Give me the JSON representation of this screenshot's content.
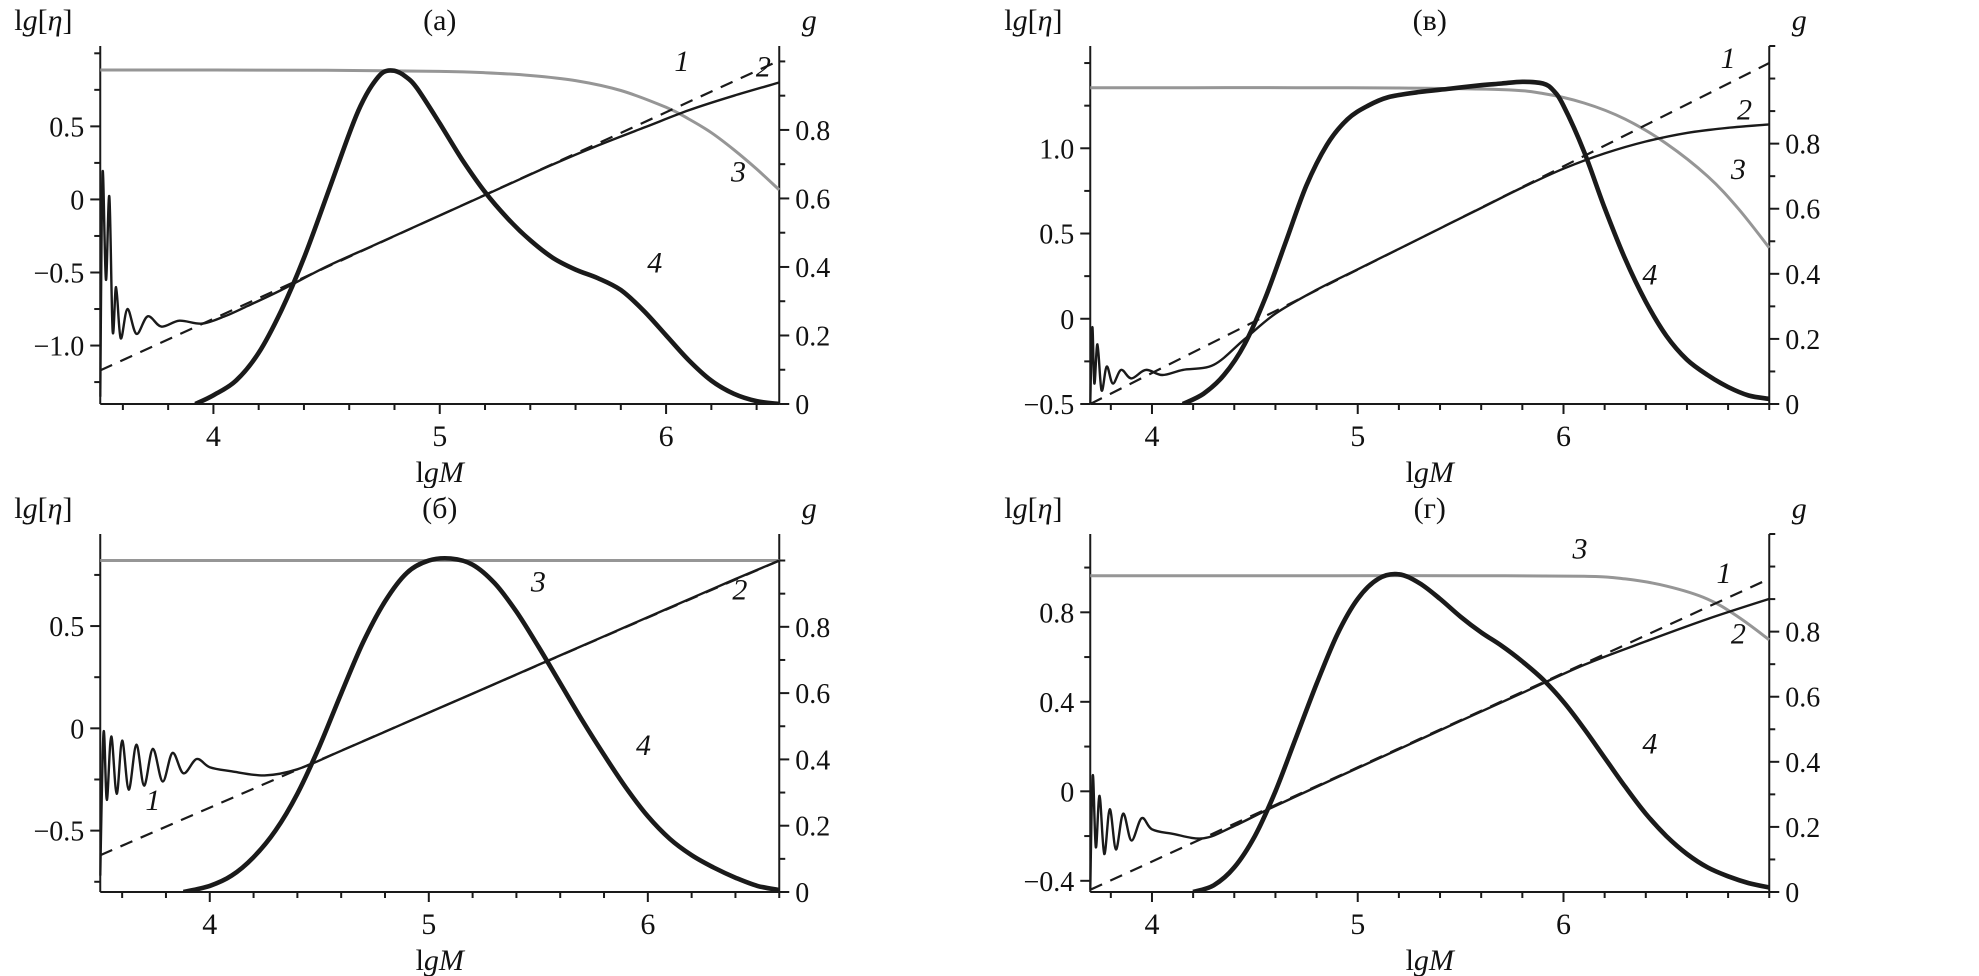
{
  "palette": {
    "black": "#1a1a1a",
    "gray": "#969696",
    "text": "#111111"
  },
  "chart_data": [
    {
      "id": "a",
      "type": "line",
      "title": "(а)",
      "xlabel": "lgM",
      "ylabel_left": "lg[η]",
      "ylabel_right": "g",
      "xlim": [
        3.5,
        6.5
      ],
      "ylim_left": [
        -1.4,
        1.05
      ],
      "ylim_right": [
        0,
        1.045
      ],
      "grid": false,
      "xticks": [
        {
          "v": 4,
          "t": "4"
        },
        {
          "v": 5,
          "t": "5"
        },
        {
          "v": 6,
          "t": "6"
        }
      ],
      "yticks_left": [
        {
          "v": -1.0,
          "t": "−1.0"
        },
        {
          "v": -0.5,
          "t": "−0.5"
        },
        {
          "v": 0,
          "t": "0"
        },
        {
          "v": 0.5,
          "t": "0.5"
        }
      ],
      "yticks_right": [
        {
          "v": 0,
          "t": "0"
        },
        {
          "v": 0.2,
          "t": "0.2"
        },
        {
          "v": 0.4,
          "t": "0.4"
        },
        {
          "v": 0.6,
          "t": "0.6"
        },
        {
          "v": 0.8,
          "t": "0.8"
        }
      ],
      "xminor": 0.2,
      "yminor_left": 0.25,
      "yminor_right": 0.1,
      "series": [
        {
          "name": "3",
          "style": "gray",
          "axis": "right",
          "x": [
            3.5,
            4.0,
            4.5,
            5.0,
            5.2,
            5.4,
            5.6,
            5.8,
            6.0,
            6.1,
            6.2,
            6.3,
            6.4,
            6.5
          ],
          "y": [
            0.975,
            0.975,
            0.974,
            0.971,
            0.967,
            0.959,
            0.944,
            0.915,
            0.866,
            0.832,
            0.792,
            0.742,
            0.686,
            0.625
          ]
        },
        {
          "name": "1",
          "style": "dashed",
          "axis": "left",
          "x": [
            3.5,
            6.5
          ],
          "y": [
            -1.17,
            0.95
          ]
        },
        {
          "name": "2",
          "style": "solid",
          "axis": "left",
          "x": [
            3.5,
            3.51,
            3.525,
            3.54,
            3.555,
            3.57,
            3.59,
            3.62,
            3.66,
            3.71,
            3.77,
            3.85,
            3.95,
            4.05,
            4.15,
            4.3,
            4.5,
            4.7,
            4.9,
            5.1,
            5.3,
            5.5,
            5.7,
            5.9,
            6.1,
            6.3,
            6.5
          ],
          "y": [
            -1.35,
            0.18,
            -0.55,
            0.02,
            -0.9,
            -0.6,
            -0.95,
            -0.75,
            -0.92,
            -0.8,
            -0.87,
            -0.83,
            -0.85,
            -0.8,
            -0.73,
            -0.62,
            -0.46,
            -0.32,
            -0.18,
            -0.04,
            0.1,
            0.24,
            0.37,
            0.49,
            0.61,
            0.71,
            0.8
          ]
        },
        {
          "name": "4",
          "style": "thick",
          "axis": "left",
          "x": [
            3.92,
            4.0,
            4.1,
            4.2,
            4.3,
            4.4,
            4.5,
            4.6,
            4.65,
            4.7,
            4.75,
            4.8,
            4.85,
            4.9,
            5.0,
            5.1,
            5.2,
            5.3,
            5.4,
            5.5,
            5.6,
            5.7,
            5.8,
            5.9,
            6.0,
            6.1,
            6.2,
            6.3,
            6.4,
            6.5
          ],
          "y": [
            -1.4,
            -1.34,
            -1.24,
            -1.05,
            -0.76,
            -0.4,
            0.02,
            0.45,
            0.64,
            0.78,
            0.87,
            0.88,
            0.84,
            0.76,
            0.52,
            0.27,
            0.05,
            -0.13,
            -0.28,
            -0.4,
            -0.48,
            -0.54,
            -0.62,
            -0.76,
            -0.93,
            -1.1,
            -1.24,
            -1.33,
            -1.38,
            -1.4
          ]
        }
      ],
      "labels": [
        {
          "text": "1",
          "axis": "left",
          "x": 6.07,
          "y": 0.88
        },
        {
          "text": "2",
          "axis": "left",
          "x": 6.43,
          "y": 0.84
        },
        {
          "text": "3",
          "axis": "right",
          "x": 6.32,
          "y": 0.65
        },
        {
          "text": "4",
          "axis": "left",
          "x": 5.95,
          "y": -0.5
        }
      ]
    },
    {
      "id": "v",
      "type": "line",
      "title": "(в)",
      "xlabel": "lgM",
      "ylabel_left": "lg[η]",
      "ylabel_right": "g",
      "xlim": [
        3.7,
        7.0
      ],
      "ylim_left": [
        -0.5,
        1.6
      ],
      "ylim_right": [
        0,
        1.1
      ],
      "grid": false,
      "xticks": [
        {
          "v": 4,
          "t": "4"
        },
        {
          "v": 5,
          "t": "5"
        },
        {
          "v": 6,
          "t": "6"
        }
      ],
      "yticks_left": [
        {
          "v": -0.5,
          "t": "−0.5"
        },
        {
          "v": 0,
          "t": "0"
        },
        {
          "v": 0.5,
          "t": "0.5"
        },
        {
          "v": 1.0,
          "t": "1.0"
        }
      ],
      "yticks_right": [
        {
          "v": 0,
          "t": "0"
        },
        {
          "v": 0.2,
          "t": "0.2"
        },
        {
          "v": 0.4,
          "t": "0.4"
        },
        {
          "v": 0.6,
          "t": "0.6"
        },
        {
          "v": 0.8,
          "t": "0.8"
        }
      ],
      "xminor": 0.2,
      "yminor_left": 0.25,
      "yminor_right": 0.1,
      "series": [
        {
          "name": "3",
          "style": "gray",
          "axis": "right",
          "x": [
            3.7,
            4.2,
            4.7,
            5.2,
            5.7,
            5.9,
            6.1,
            6.3,
            6.5,
            6.7,
            6.85,
            7.0
          ],
          "y": [
            0.972,
            0.972,
            0.972,
            0.971,
            0.966,
            0.954,
            0.925,
            0.875,
            0.8,
            0.7,
            0.6,
            0.48
          ]
        },
        {
          "name": "1",
          "style": "dashed",
          "axis": "left",
          "x": [
            3.7,
            7.0
          ],
          "y": [
            -0.5,
            1.5
          ]
        },
        {
          "name": "2",
          "style": "solid",
          "axis": "left",
          "x": [
            3.7,
            3.71,
            3.72,
            3.735,
            3.755,
            3.78,
            3.81,
            3.85,
            3.9,
            3.97,
            4.05,
            4.15,
            4.3,
            4.45,
            4.6,
            4.8,
            5.0,
            5.2,
            5.4,
            5.6,
            5.8,
            6.0,
            6.2,
            6.4,
            6.6,
            6.8,
            7.0
          ],
          "y": [
            -0.5,
            -0.05,
            -0.38,
            -0.15,
            -0.42,
            -0.28,
            -0.38,
            -0.3,
            -0.35,
            -0.3,
            -0.33,
            -0.3,
            -0.27,
            -0.12,
            0.03,
            0.17,
            0.29,
            0.41,
            0.53,
            0.65,
            0.77,
            0.88,
            0.97,
            1.04,
            1.09,
            1.12,
            1.14
          ]
        },
        {
          "name": "4",
          "style": "thick",
          "axis": "left",
          "x": [
            4.15,
            4.25,
            4.35,
            4.45,
            4.55,
            4.65,
            4.75,
            4.85,
            4.95,
            5.05,
            5.15,
            5.3,
            5.45,
            5.6,
            5.7,
            5.8,
            5.9,
            5.95,
            6.0,
            6.1,
            6.2,
            6.3,
            6.4,
            6.5,
            6.6,
            6.7,
            6.8,
            6.9,
            7.0
          ],
          "y": [
            -0.5,
            -0.44,
            -0.33,
            -0.15,
            0.12,
            0.45,
            0.78,
            1.02,
            1.17,
            1.25,
            1.3,
            1.33,
            1.35,
            1.37,
            1.38,
            1.39,
            1.38,
            1.34,
            1.25,
            0.98,
            0.65,
            0.35,
            0.1,
            -0.1,
            -0.24,
            -0.33,
            -0.4,
            -0.45,
            -0.47
          ]
        }
      ],
      "labels": [
        {
          "text": "1",
          "axis": "left",
          "x": 6.8,
          "y": 1.47
        },
        {
          "text": "2",
          "axis": "left",
          "x": 6.88,
          "y": 1.17
        },
        {
          "text": "3",
          "axis": "left",
          "x": 6.85,
          "y": 0.82
        },
        {
          "text": "4",
          "axis": "left",
          "x": 6.42,
          "y": 0.2
        }
      ]
    },
    {
      "id": "b",
      "type": "line",
      "title": "(б)",
      "xlabel": "lgM",
      "ylabel_left": "lg[η]",
      "ylabel_right": "g",
      "xlim": [
        3.5,
        6.6
      ],
      "ylim_left": [
        -0.8,
        0.95
      ],
      "ylim_right": [
        0,
        1.08
      ],
      "grid": false,
      "xticks": [
        {
          "v": 4,
          "t": "4"
        },
        {
          "v": 5,
          "t": "5"
        },
        {
          "v": 6,
          "t": "6"
        }
      ],
      "yticks_left": [
        {
          "v": -0.5,
          "t": "−0.5"
        },
        {
          "v": 0,
          "t": "0"
        },
        {
          "v": 0.5,
          "t": "0.5"
        }
      ],
      "yticks_right": [
        {
          "v": 0,
          "t": "0"
        },
        {
          "v": 0.2,
          "t": "0.2"
        },
        {
          "v": 0.4,
          "t": "0.4"
        },
        {
          "v": 0.6,
          "t": "0.6"
        },
        {
          "v": 0.8,
          "t": "0.8"
        }
      ],
      "xminor": 0.2,
      "yminor_left": 0.25,
      "yminor_right": 0.1,
      "series": [
        {
          "name": "3",
          "style": "gray",
          "axis": "right",
          "x": [
            3.5,
            6.6
          ],
          "y": [
            1.0,
            1.0
          ]
        },
        {
          "name": "1",
          "style": "dashed",
          "axis": "left",
          "x": [
            3.5,
            6.6
          ],
          "y": [
            -0.62,
            0.82
          ]
        },
        {
          "name": "2",
          "style": "solid",
          "axis": "left",
          "x": [
            3.5,
            3.515,
            3.53,
            3.55,
            3.575,
            3.6,
            3.63,
            3.665,
            3.7,
            3.74,
            3.785,
            3.83,
            3.88,
            3.94,
            4.0,
            4.1,
            4.25,
            4.4,
            4.6,
            4.9,
            5.2,
            5.5,
            5.8,
            6.1,
            6.4,
            6.6
          ],
          "y": [
            -0.72,
            -0.02,
            -0.35,
            -0.04,
            -0.32,
            -0.06,
            -0.3,
            -0.08,
            -0.28,
            -0.1,
            -0.26,
            -0.12,
            -0.22,
            -0.15,
            -0.19,
            -0.21,
            -0.23,
            -0.2,
            -0.11,
            0.03,
            0.17,
            0.31,
            0.45,
            0.59,
            0.73,
            0.82
          ]
        },
        {
          "name": "4",
          "style": "thick",
          "axis": "left",
          "x": [
            3.88,
            4.0,
            4.1,
            4.2,
            4.3,
            4.4,
            4.5,
            4.6,
            4.7,
            4.8,
            4.9,
            5.0,
            5.1,
            5.2,
            5.3,
            5.4,
            5.5,
            5.6,
            5.7,
            5.8,
            5.9,
            6.0,
            6.1,
            6.2,
            6.3,
            6.4,
            6.5,
            6.6
          ],
          "y": [
            -0.8,
            -0.77,
            -0.72,
            -0.63,
            -0.5,
            -0.32,
            -0.09,
            0.17,
            0.42,
            0.62,
            0.76,
            0.82,
            0.83,
            0.8,
            0.71,
            0.57,
            0.4,
            0.22,
            0.04,
            -0.13,
            -0.29,
            -0.43,
            -0.54,
            -0.62,
            -0.68,
            -0.73,
            -0.77,
            -0.79
          ]
        }
      ],
      "labels": [
        {
          "text": "1",
          "axis": "left",
          "x": 3.74,
          "y": -0.4
        },
        {
          "text": "2",
          "axis": "left",
          "x": 6.42,
          "y": 0.63
        },
        {
          "text": "3",
          "axis": "left",
          "x": 5.5,
          "y": 0.67
        },
        {
          "text": "4",
          "axis": "left",
          "x": 5.98,
          "y": -0.13
        }
      ]
    },
    {
      "id": "g",
      "type": "line",
      "title": "(г)",
      "xlabel": "lgM",
      "ylabel_left": "lg[η]",
      "ylabel_right": "g",
      "xlim": [
        3.7,
        7.0
      ],
      "ylim_left": [
        -0.45,
        1.15
      ],
      "ylim_right": [
        0,
        1.1
      ],
      "grid": false,
      "xticks": [
        {
          "v": 4,
          "t": "4"
        },
        {
          "v": 5,
          "t": "5"
        },
        {
          "v": 6,
          "t": "6"
        }
      ],
      "yticks_left": [
        {
          "v": -0.4,
          "t": "−0.4"
        },
        {
          "v": 0,
          "t": "0"
        },
        {
          "v": 0.4,
          "t": "0.4"
        },
        {
          "v": 0.8,
          "t": "0.8"
        }
      ],
      "yticks_right": [
        {
          "v": 0,
          "t": "0"
        },
        {
          "v": 0.2,
          "t": "0.2"
        },
        {
          "v": 0.4,
          "t": "0.4"
        },
        {
          "v": 0.6,
          "t": "0.6"
        },
        {
          "v": 0.8,
          "t": "0.8"
        }
      ],
      "xminor": 0.2,
      "yminor_left": 0.2,
      "yminor_right": 0.1,
      "series": [
        {
          "name": "3",
          "style": "gray",
          "axis": "right",
          "x": [
            3.7,
            4.3,
            4.9,
            5.5,
            6.1,
            6.3,
            6.5,
            6.7,
            6.85,
            7.0
          ],
          "y": [
            0.972,
            0.972,
            0.972,
            0.972,
            0.97,
            0.962,
            0.94,
            0.9,
            0.845,
            0.775
          ]
        },
        {
          "name": "1",
          "style": "dashed",
          "axis": "left",
          "x": [
            3.7,
            7.0
          ],
          "y": [
            -0.44,
            0.95
          ]
        },
        {
          "name": "2",
          "style": "solid",
          "axis": "left",
          "x": [
            3.7,
            3.712,
            3.727,
            3.745,
            3.768,
            3.795,
            3.825,
            3.86,
            3.9,
            3.95,
            4.0,
            4.1,
            4.25,
            4.4,
            4.6,
            4.9,
            5.2,
            5.5,
            5.8,
            6.1,
            6.4,
            6.7,
            7.0
          ],
          "y": [
            -0.44,
            0.07,
            -0.25,
            -0.02,
            -0.28,
            -0.08,
            -0.26,
            -0.1,
            -0.22,
            -0.12,
            -0.17,
            -0.19,
            -0.21,
            -0.155,
            -0.065,
            0.062,
            0.188,
            0.315,
            0.44,
            0.565,
            0.67,
            0.77,
            0.86
          ]
        },
        {
          "name": "4",
          "style": "thick",
          "axis": "left",
          "x": [
            4.2,
            4.3,
            4.4,
            4.5,
            4.6,
            4.7,
            4.8,
            4.9,
            5.0,
            5.1,
            5.2,
            5.3,
            5.4,
            5.5,
            5.6,
            5.7,
            5.8,
            5.9,
            6.0,
            6.1,
            6.2,
            6.3,
            6.4,
            6.5,
            6.6,
            6.7,
            6.8,
            6.9,
            7.0
          ],
          "y": [
            -0.45,
            -0.42,
            -0.34,
            -0.2,
            0.0,
            0.24,
            0.48,
            0.7,
            0.86,
            0.95,
            0.97,
            0.93,
            0.86,
            0.78,
            0.71,
            0.65,
            0.58,
            0.5,
            0.4,
            0.28,
            0.15,
            0.02,
            -0.1,
            -0.2,
            -0.28,
            -0.34,
            -0.38,
            -0.41,
            -0.43
          ]
        }
      ],
      "labels": [
        {
          "text": "3",
          "axis": "left",
          "x": 6.08,
          "y": 1.04
        },
        {
          "text": "1",
          "axis": "left",
          "x": 6.78,
          "y": 0.93
        },
        {
          "text": "2",
          "axis": "left",
          "x": 6.85,
          "y": 0.66
        },
        {
          "text": "4",
          "axis": "left",
          "x": 6.42,
          "y": 0.17
        }
      ]
    }
  ]
}
